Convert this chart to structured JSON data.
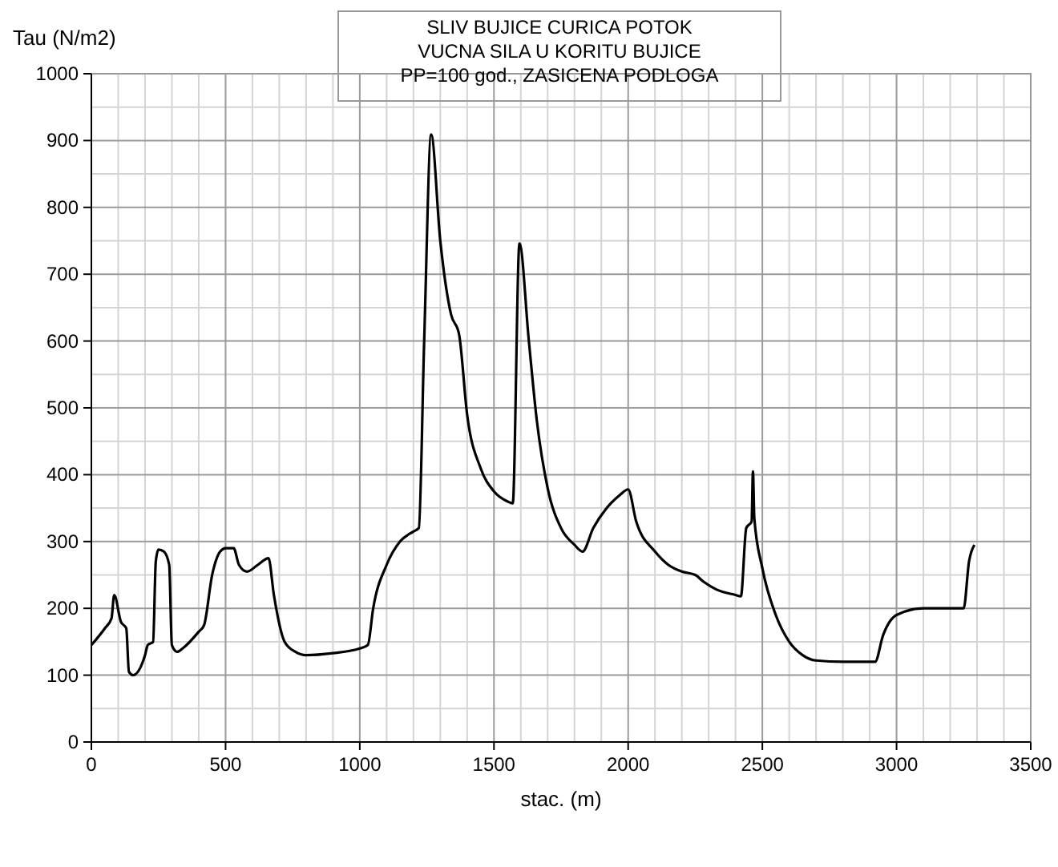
{
  "chart_data": {
    "type": "line",
    "title": "SLIV BUJICE CURICA POTOK\nVUCNA SILA U KORITU BUJICE\nPP=100 god., ZASICENA PODLOGA",
    "xlabel": "stac. (m)",
    "ylabel": "Tau (N/m2)",
    "x": [
      0,
      50,
      75,
      85,
      110,
      130,
      140,
      155,
      200,
      210,
      230,
      240,
      250,
      270,
      290,
      300,
      320,
      340,
      400,
      420,
      450,
      480,
      500,
      530,
      550,
      580,
      620,
      660,
      680,
      720,
      760,
      800,
      900,
      1000,
      1030,
      1050,
      1100,
      1150,
      1200,
      1220,
      1240,
      1266,
      1300,
      1340,
      1370,
      1400,
      1450,
      1500,
      1550,
      1570,
      1595,
      1630,
      1660,
      1700,
      1750,
      1800,
      1830,
      1870,
      1920,
      1970,
      2000,
      2030,
      2100,
      2150,
      2200,
      2250,
      2280,
      2330,
      2400,
      2420,
      2440,
      2460,
      2465,
      2470,
      2500,
      2550,
      2600,
      2650,
      2700,
      2800,
      2920,
      2950,
      3000,
      3100,
      3200,
      3250,
      3270,
      3290
    ],
    "series": [
      {
        "color": "#000000",
        "values": [
          145,
          170,
          185,
          220,
          180,
          170,
          105,
          100,
          130,
          145,
          150,
          270,
          288,
          285,
          265,
          145,
          135,
          140,
          165,
          175,
          250,
          285,
          290,
          290,
          265,
          255,
          265,
          275,
          220,
          150,
          135,
          130,
          133,
          140,
          145,
          200,
          265,
          300,
          315,
          320,
          600,
          909,
          750,
          640,
          610,
          490,
          410,
          375,
          360,
          357,
          746,
          600,
          480,
          380,
          320,
          295,
          285,
          320,
          350,
          370,
          378,
          330,
          285,
          265,
          255,
          250,
          240,
          228,
          220,
          218,
          320,
          330,
          405,
          335,
          260,
          190,
          150,
          130,
          122,
          120,
          120,
          160,
          190,
          200,
          200,
          200,
          270,
          295
        ]
      }
    ],
    "xlim": [
      0,
      3500
    ],
    "ylim": [
      0,
      1000
    ],
    "xticks": [
      0,
      500,
      1000,
      1500,
      2000,
      2500,
      3000,
      3500
    ],
    "yticks": [
      0,
      100,
      200,
      300,
      400,
      500,
      600,
      700,
      800,
      900,
      1000
    ],
    "grid": true,
    "marker": "none",
    "line_style": "solid"
  }
}
